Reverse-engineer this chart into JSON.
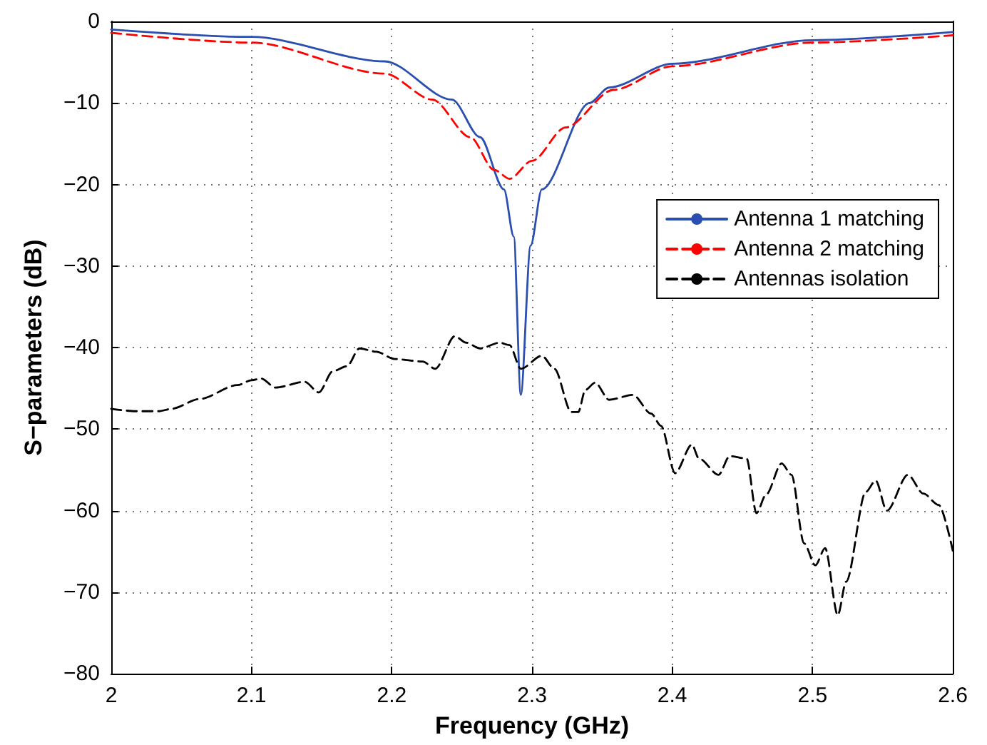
{
  "chart_data": {
    "type": "line",
    "xlabel": "Frequency (GHz)",
    "ylabel": "S−parameters (dB)",
    "xlim": [
      2,
      2.6
    ],
    "xticks": [
      2,
      2.1,
      2.2,
      2.3,
      2.4,
      2.5,
      2.6
    ],
    "ylim": [
      -80,
      0
    ],
    "yticks": [
      {
        "value": -80,
        "label": "−80"
      },
      {
        "value": -70,
        "label": "−70"
      },
      {
        "value": -60,
        "label": "−60"
      },
      {
        "value": -50,
        "label": "−50"
      },
      {
        "value": -40,
        "label": "−40"
      },
      {
        "value": -30,
        "label": "−30"
      },
      {
        "value": -20,
        "label": "−20"
      },
      {
        "value": -10,
        "label": "−10"
      },
      {
        "value": 0,
        "label": "0"
      }
    ],
    "grid": true,
    "legend": "right",
    "marker": "none",
    "series": [
      {
        "name": "Antenna 1 matching",
        "color": "#2b4fb0",
        "line_style": "solid",
        "x": [
          2.0,
          2.1,
          2.195,
          2.243,
          2.263,
          2.28,
          2.287,
          2.292,
          2.299,
          2.307,
          2.341,
          2.355,
          2.4,
          2.5,
          2.6
        ],
        "values": [
          -1.0,
          -1.9,
          -4.9,
          -9.6,
          -14.2,
          -20.6,
          -26.4,
          -45.8,
          -27.5,
          -20.6,
          -10.0,
          -8.1,
          -5.2,
          -2.3,
          -1.3
        ]
      },
      {
        "name": "Antenna 2 matching",
        "color": "#ff0000",
        "line_style": "dashed",
        "x": [
          2.0,
          2.1,
          2.195,
          2.229,
          2.256,
          2.273,
          2.284,
          2.3,
          2.324,
          2.358,
          2.4,
          2.5,
          2.6
        ],
        "values": [
          -1.4,
          -2.6,
          -6.4,
          -9.6,
          -14.2,
          -18.2,
          -19.3,
          -17.1,
          -13.0,
          -8.4,
          -5.5,
          -2.6,
          -1.7
        ]
      },
      {
        "name": "Antennas isolation",
        "color": "#000000",
        "line_style": "dashed",
        "x": [
          2.0,
          2.017,
          2.034,
          2.043,
          2.063,
          2.09,
          2.1,
          2.107,
          2.117,
          2.138,
          2.148,
          2.158,
          2.168,
          2.177,
          2.189,
          2.202,
          2.222,
          2.231,
          2.245,
          2.253,
          2.263,
          2.277,
          2.284,
          2.292,
          2.307,
          2.316,
          2.328,
          2.333,
          2.338,
          2.345,
          2.355,
          2.372,
          2.385,
          2.392,
          2.402,
          2.414,
          2.419,
          2.433,
          2.441,
          2.453,
          2.46,
          2.467,
          2.478,
          2.485,
          2.494,
          2.502,
          2.509,
          2.518,
          2.524,
          2.538,
          2.545,
          2.553,
          2.568,
          2.579,
          2.59,
          2.6
        ],
        "values": [
          -47.5,
          -47.8,
          -47.8,
          -47.5,
          -46.3,
          -44.6,
          -44.0,
          -43.8,
          -44.9,
          -44.2,
          -45.5,
          -42.9,
          -42.3,
          -40.1,
          -40.5,
          -41.4,
          -41.7,
          -42.6,
          -38.6,
          -39.4,
          -40.1,
          -39.4,
          -39.7,
          -42.6,
          -41.0,
          -42.6,
          -47.9,
          -47.9,
          -45.2,
          -44.3,
          -46.4,
          -45.8,
          -48.1,
          -49.6,
          -55.4,
          -51.9,
          -53.6,
          -55.6,
          -53.3,
          -53.6,
          -60.3,
          -58.0,
          -54.2,
          -55.6,
          -64.0,
          -66.7,
          -64.6,
          -72.8,
          -68.7,
          -57.7,
          -56.3,
          -60.0,
          -55.6,
          -57.9,
          -59.3,
          -64.9
        ]
      }
    ]
  }
}
